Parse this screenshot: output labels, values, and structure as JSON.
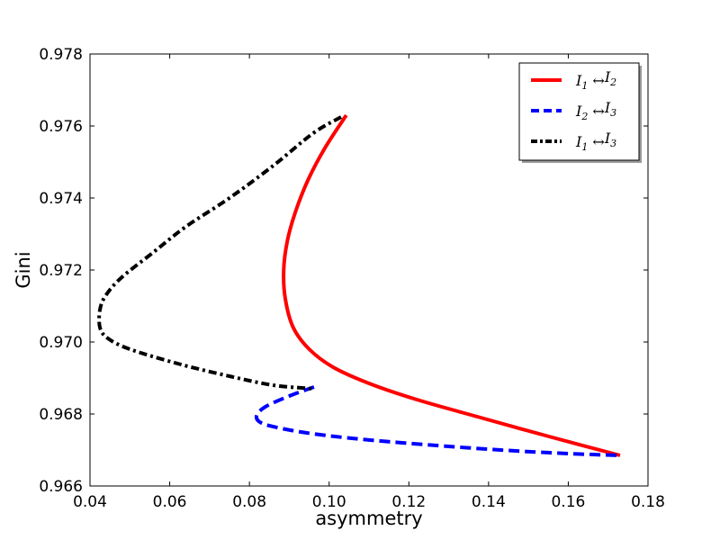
{
  "chart_data": {
    "type": "line",
    "title": "",
    "xlabel": "asymmetry",
    "ylabel": "Gini",
    "xlim": [
      0.04,
      0.18
    ],
    "ylim": [
      0.966,
      0.978
    ],
    "xticks": [
      "0.04",
      "0.06",
      "0.08",
      "0.10",
      "0.12",
      "0.14",
      "0.16",
      "0.18"
    ],
    "yticks": [
      "0.966",
      "0.968",
      "0.970",
      "0.972",
      "0.974",
      "0.976",
      "0.978"
    ],
    "grid": false,
    "legend_position": "top-right",
    "series": [
      {
        "name": "I1 ↔ I2",
        "legend": {
          "a": "I",
          "a_sub": "1",
          "arrow": "↔",
          "b": "I",
          "b_sub": "2"
        },
        "color": "#ff0000",
        "style": "solid",
        "x": [
          0.1043,
          0.099,
          0.0947,
          0.0915,
          0.0895,
          0.0886,
          0.089,
          0.091,
          0.095,
          0.101,
          0.11,
          0.122,
          0.138,
          0.156,
          0.173
        ],
        "y": [
          0.9763,
          0.9754,
          0.9745,
          0.9736,
          0.9728,
          0.972,
          0.9712,
          0.9704,
          0.9698,
          0.9693,
          0.96885,
          0.9684,
          0.9679,
          0.96735,
          0.96685
        ]
      },
      {
        "name": "I2 ↔ I3",
        "legend": {
          "a": "I",
          "a_sub": "2",
          "arrow": "↔",
          "b": "I",
          "b_sub": "3"
        },
        "color": "#0000ff",
        "style": "dashed",
        "x": [
          0.0962,
          0.09,
          0.084,
          0.0818,
          0.083,
          0.088,
          0.096,
          0.108,
          0.124,
          0.143,
          0.16,
          0.173
        ],
        "y": [
          0.96875,
          0.9685,
          0.9682,
          0.96795,
          0.96775,
          0.9676,
          0.96745,
          0.9673,
          0.96715,
          0.967,
          0.9669,
          0.96685
        ]
      },
      {
        "name": "I1 ↔ I3",
        "legend": {
          "a": "I",
          "a_sub": "1",
          "arrow": "↔",
          "b": "I",
          "b_sub": "3"
        },
        "color": "#000000",
        "style": "dashdot",
        "x": [
          0.103,
          0.096,
          0.086,
          0.075,
          0.064,
          0.056,
          0.048,
          0.044,
          0.0425,
          0.0425,
          0.0445,
          0.05,
          0.062,
          0.075,
          0.086,
          0.0962
        ],
        "y": [
          0.97625,
          0.9758,
          0.9749,
          0.974,
          0.9732,
          0.9725,
          0.9718,
          0.9713,
          0.9709,
          0.9704,
          0.9701,
          0.9698,
          0.9694,
          0.96905,
          0.9688,
          0.9687
        ]
      }
    ]
  }
}
